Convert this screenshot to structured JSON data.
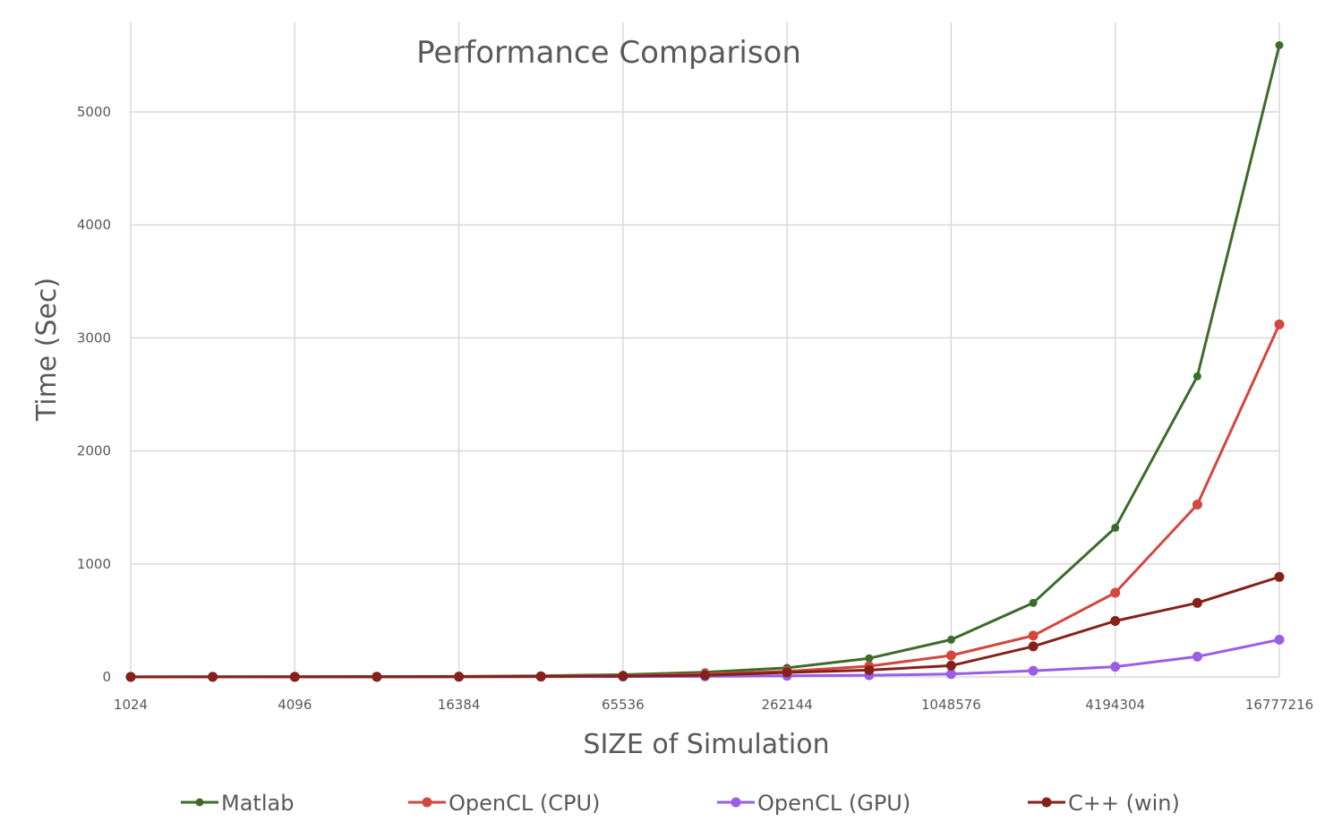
{
  "chart_data": {
    "type": "line",
    "title": "Performance Comparison",
    "xlabel": "SIZE of Simulation",
    "ylabel": "Time (Sec)",
    "x_scale": "log2",
    "x": [
      1024,
      2048,
      4096,
      8192,
      16384,
      32768,
      65536,
      131072,
      262144,
      524288,
      1048576,
      2097152,
      4194304,
      8388608,
      16777216
    ],
    "x_tick_labels": [
      "1024",
      "4096",
      "16384",
      "65536",
      "262144",
      "1048576",
      "4194304",
      "16777216"
    ],
    "ylim": [
      0,
      5000
    ],
    "y_ticks": [
      0,
      1000,
      2000,
      3000,
      4000,
      5000
    ],
    "grid": true,
    "legend_position": "bottom",
    "series": [
      {
        "name": "Matlab",
        "color": "#3e6b2a",
        "values": [
          1,
          1,
          2,
          3,
          5,
          10,
          20,
          42,
          80,
          165,
          330,
          655,
          1320,
          2660,
          5590
        ]
      },
      {
        "name": "OpenCL (CPU)",
        "color": "#d3473d",
        "values": [
          0.5,
          0.6,
          1,
          1.5,
          3,
          6,
          10,
          25,
          50,
          95,
          190,
          365,
          745,
          1525,
          3120
        ]
      },
      {
        "name": "OpenCL (GPU)",
        "color": "#9b5de5",
        "values": [
          0.1,
          0.2,
          0.3,
          0.5,
          1,
          2,
          3,
          5,
          10,
          15,
          25,
          55,
          90,
          180,
          330
        ]
      },
      {
        "name": "C++ (win)",
        "color": "#84211a",
        "values": [
          0.3,
          0.4,
          0.6,
          1,
          2,
          4,
          7,
          15,
          40,
          60,
          100,
          270,
          495,
          655,
          885
        ]
      }
    ]
  }
}
